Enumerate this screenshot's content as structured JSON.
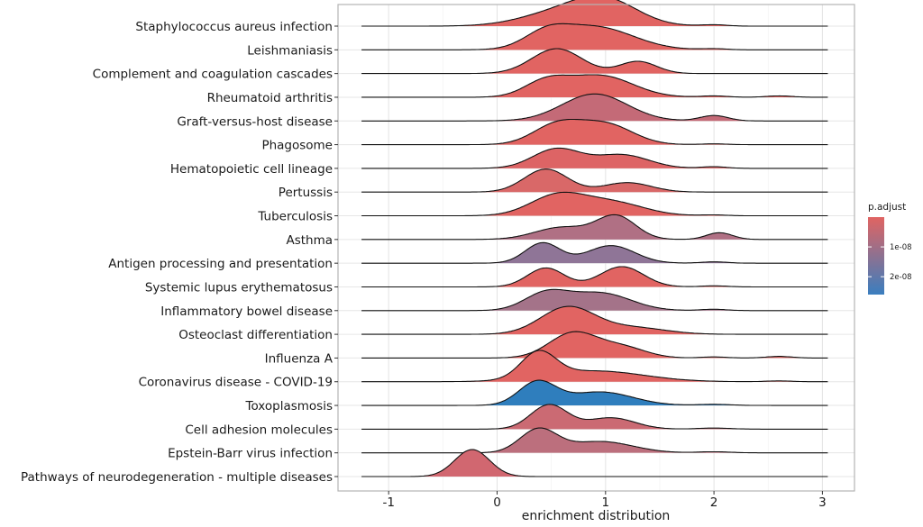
{
  "chart_data": {
    "type": "ridgeline",
    "title": "",
    "xlabel": "enrichment distribution",
    "ylabel": "",
    "xlim": [
      -1.5,
      3.3
    ],
    "xticks": [
      -1,
      0,
      1,
      2,
      3
    ],
    "xtick_labels": [
      "-1",
      "0",
      "1",
      "2",
      "3"
    ],
    "grid": true,
    "legend": {
      "title": "p.adjust",
      "placement": "right",
      "type": "colorbar",
      "low_color": "#E16462",
      "high_color": "#3A7EBF",
      "range": [
        0,
        2.6e-08
      ],
      "ticks": [
        1e-08,
        2e-08
      ],
      "tick_labels": [
        "1e-08",
        "2e-08"
      ]
    },
    "series": [
      {
        "name": "Staphylococcus aureus infection",
        "color": "#E16462",
        "curve_range": [
          -1.25,
          3.05
        ],
        "components": [
          [
            0.55,
            0.35,
            0.45
          ],
          [
            1.0,
            0.3,
            0.9
          ],
          [
            2.0,
            0.12,
            0.05
          ]
        ]
      },
      {
        "name": "Leishmaniasis",
        "color": "#E16462",
        "curve_range": [
          -1.25,
          3.05
        ],
        "components": [
          [
            0.45,
            0.2,
            0.5
          ],
          [
            0.9,
            0.35,
            0.85
          ],
          [
            2.0,
            0.12,
            0.04
          ]
        ]
      },
      {
        "name": "Complement and coagulation cascades",
        "color": "#E16462",
        "curve_range": [
          -1.25,
          3.05
        ],
        "components": [
          [
            0.55,
            0.23,
            0.92
          ],
          [
            1.3,
            0.17,
            0.45
          ]
        ]
      },
      {
        "name": "Rheumatoid arthritis",
        "color": "#E16462",
        "curve_range": [
          -1.25,
          3.05
        ],
        "components": [
          [
            0.45,
            0.2,
            0.55
          ],
          [
            0.95,
            0.3,
            0.8
          ],
          [
            2.0,
            0.12,
            0.05
          ],
          [
            2.6,
            0.12,
            0.05
          ]
        ]
      },
      {
        "name": "Graft-versus-host disease",
        "color": "#C46A77",
        "curve_range": [
          -1.25,
          3.05
        ],
        "components": [
          [
            0.9,
            0.3,
            1.0
          ],
          [
            2.0,
            0.13,
            0.2
          ]
        ]
      },
      {
        "name": "Phagosome",
        "color": "#E16462",
        "curve_range": [
          -1.25,
          3.05
        ],
        "components": [
          [
            0.55,
            0.22,
            0.72
          ],
          [
            1.0,
            0.25,
            0.75
          ],
          [
            2.0,
            0.12,
            0.03
          ]
        ]
      },
      {
        "name": "Hematopoietic cell lineage",
        "color": "#DD6465",
        "curve_range": [
          -1.25,
          3.05
        ],
        "components": [
          [
            0.55,
            0.22,
            0.72
          ],
          [
            1.15,
            0.25,
            0.5
          ],
          [
            2.0,
            0.12,
            0.06
          ]
        ]
      },
      {
        "name": "Pertussis",
        "color": "#D96868",
        "curve_range": [
          -1.25,
          3.05
        ],
        "components": [
          [
            0.45,
            0.2,
            0.85
          ],
          [
            1.2,
            0.22,
            0.35
          ]
        ]
      },
      {
        "name": "Tuberculosis",
        "color": "#E16462",
        "curve_range": [
          -1.25,
          3.05
        ],
        "components": [
          [
            0.55,
            0.25,
            0.72
          ],
          [
            1.05,
            0.3,
            0.5
          ],
          [
            2.0,
            0.12,
            0.03
          ]
        ]
      },
      {
        "name": "Asthma",
        "color": "#B07084",
        "curve_range": [
          -1.25,
          3.05
        ],
        "components": [
          [
            0.6,
            0.25,
            0.45
          ],
          [
            1.1,
            0.18,
            0.85
          ],
          [
            2.05,
            0.12,
            0.25
          ]
        ]
      },
      {
        "name": "Antigen processing and presentation",
        "color": "#8F7597",
        "curve_range": [
          -1.25,
          3.05
        ],
        "components": [
          [
            0.42,
            0.16,
            0.75
          ],
          [
            1.05,
            0.22,
            0.65
          ],
          [
            2.0,
            0.12,
            0.05
          ]
        ]
      },
      {
        "name": "Systemic lupus erythematosus",
        "color": "#E16462",
        "curve_range": [
          -1.25,
          3.05
        ],
        "components": [
          [
            0.45,
            0.17,
            0.7
          ],
          [
            1.15,
            0.2,
            0.75
          ],
          [
            2.0,
            0.12,
            0.04
          ]
        ]
      },
      {
        "name": "Inflammatory bowel disease",
        "color": "#A47389",
        "curve_range": [
          -1.25,
          3.05
        ],
        "components": [
          [
            0.45,
            0.2,
            0.62
          ],
          [
            0.95,
            0.28,
            0.65
          ],
          [
            2.0,
            0.12,
            0.05
          ]
        ]
      },
      {
        "name": "Osteoclast differentiation",
        "color": "#E16462",
        "curve_range": [
          -1.25,
          3.05
        ],
        "components": [
          [
            0.65,
            0.25,
            1.0
          ],
          [
            1.25,
            0.3,
            0.25
          ]
        ]
      },
      {
        "name": "Influenza A",
        "color": "#E16462",
        "curve_range": [
          -1.25,
          3.05
        ],
        "components": [
          [
            0.7,
            0.22,
            0.92
          ],
          [
            1.15,
            0.22,
            0.4
          ],
          [
            2.0,
            0.12,
            0.04
          ],
          [
            2.6,
            0.12,
            0.06
          ]
        ]
      },
      {
        "name": "Coronavirus disease - COVID-19",
        "color": "#E16462",
        "curve_range": [
          -1.25,
          3.05
        ],
        "components": [
          [
            0.38,
            0.16,
            0.95
          ],
          [
            0.9,
            0.45,
            0.4
          ],
          [
            2.6,
            0.12,
            0.03
          ]
        ]
      },
      {
        "name": "Toxoplasmosis",
        "color": "#2F7EBD",
        "curve_range": [
          -1.25,
          3.05
        ],
        "components": [
          [
            0.37,
            0.17,
            0.85
          ],
          [
            0.95,
            0.3,
            0.5
          ],
          [
            2.0,
            0.15,
            0.04
          ]
        ]
      },
      {
        "name": "Cell adhesion molecules",
        "color": "#CB6A73",
        "curve_range": [
          -1.25,
          3.05
        ],
        "components": [
          [
            0.48,
            0.17,
            0.9
          ],
          [
            1.05,
            0.22,
            0.42
          ],
          [
            2.0,
            0.15,
            0.04
          ]
        ]
      },
      {
        "name": "Epstein-Barr virus infection",
        "color": "#BC6F7D",
        "curve_range": [
          -1.25,
          3.05
        ],
        "components": [
          [
            0.38,
            0.17,
            0.85
          ],
          [
            0.95,
            0.3,
            0.42
          ],
          [
            2.0,
            0.15,
            0.04
          ]
        ]
      },
      {
        "name": "Pathways of neurodegeneration - multiple diseases",
        "color": "#D16770",
        "curve_range": [
          -1.25,
          3.05
        ],
        "components": [
          [
            -0.23,
            0.16,
            1.0
          ]
        ]
      }
    ]
  }
}
